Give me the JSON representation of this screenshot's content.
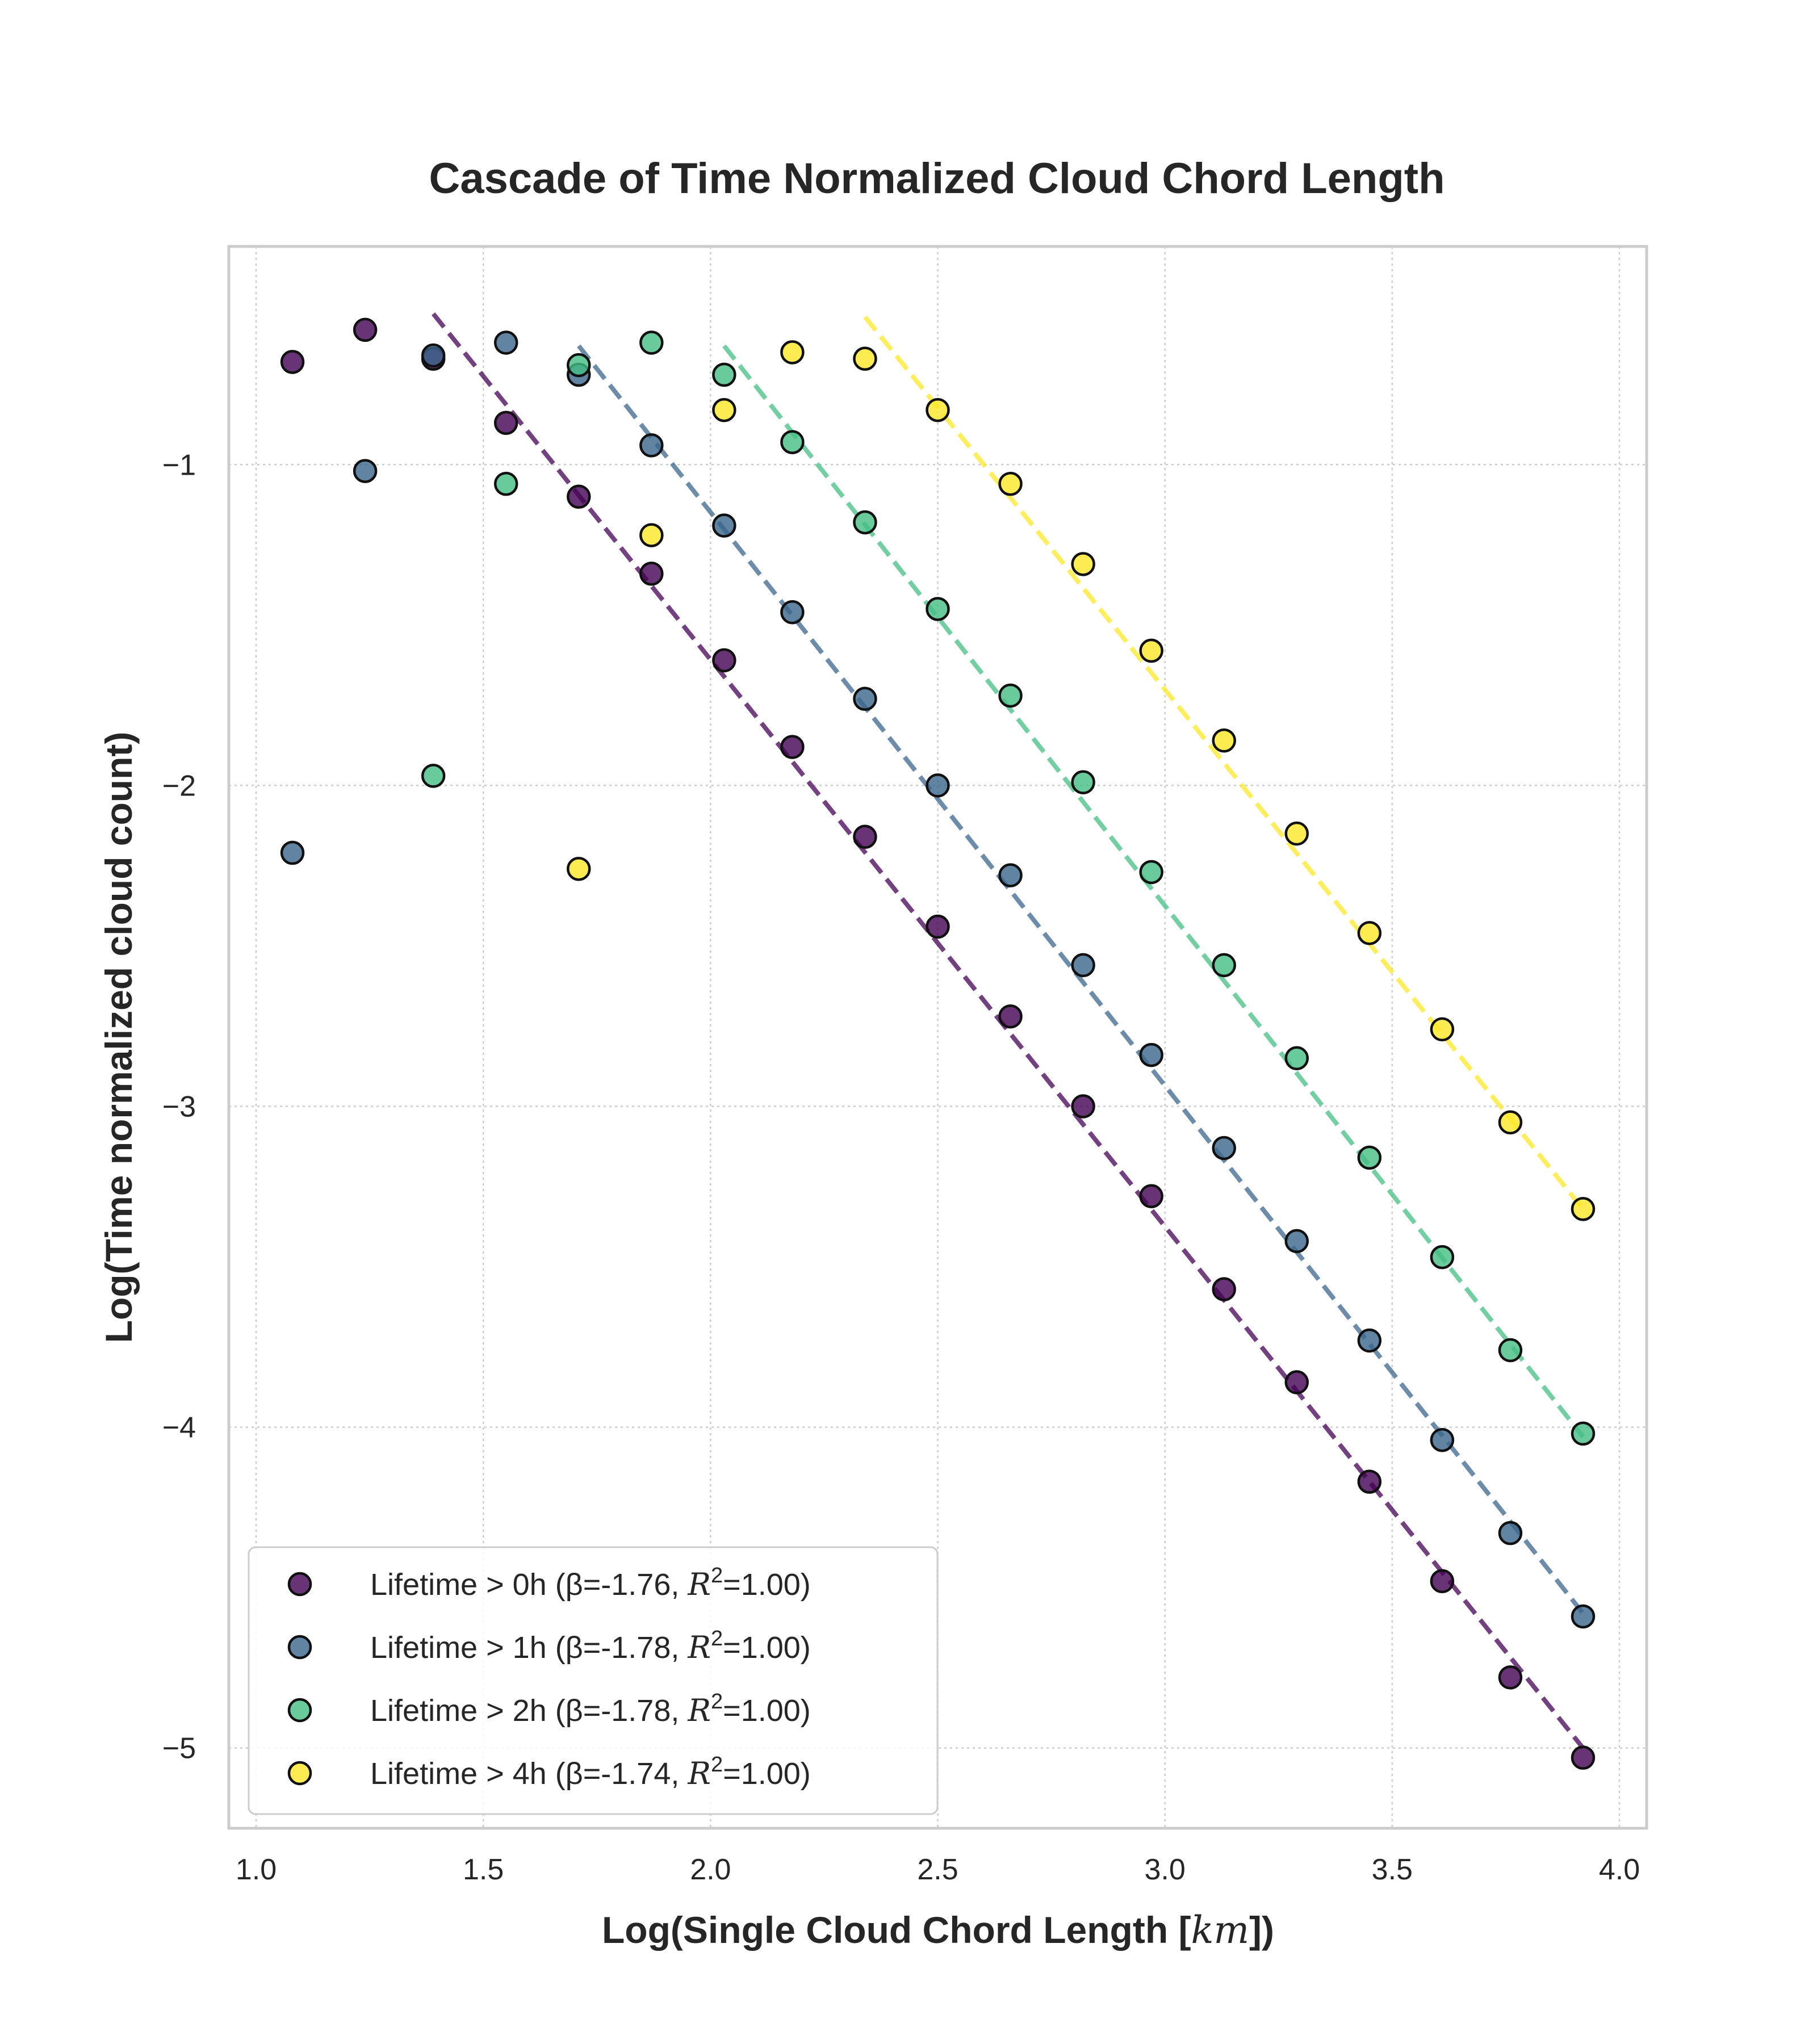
{
  "chart_data": {
    "type": "scatter",
    "title": "Cascade of Time Normalized Cloud Chord Length",
    "xlabel_main": "Log(Single Cloud Chord Length [",
    "xlabel_unit": "km",
    "xlabel_tail": "])",
    "ylabel": "Log(Time normalized cloud count)",
    "xlim": [
      0.94,
      4.06
    ],
    "ylim": [
      -5.25,
      -0.32
    ],
    "xticks": [
      1.0,
      1.5,
      2.0,
      2.5,
      3.0,
      3.5,
      4.0
    ],
    "xtick_labels": [
      "1.0",
      "1.5",
      "2.0",
      "2.5",
      "3.0",
      "3.5",
      "4.0"
    ],
    "yticks": [
      -1,
      -2,
      -3,
      -4,
      -5
    ],
    "ytick_labels": [
      "−1",
      "−2",
      "−3",
      "−4",
      "−5"
    ],
    "grid": true,
    "legend_position": "lower-left",
    "series": [
      {
        "name": "Lifetime > 0h (β=-1.76, R²=1.00)",
        "label_prefix": "Lifetime > 0h (β=-1.76, ",
        "label_suffix": "=1.00)",
        "color": "#440154",
        "x": [
          1.08,
          1.24,
          1.39,
          1.55,
          1.71,
          1.87,
          2.03,
          2.18,
          2.34,
          2.5,
          2.66,
          2.82,
          2.97,
          3.13,
          3.29,
          3.45,
          3.61,
          3.76,
          3.92
        ],
        "y": [
          -0.68,
          -0.58,
          -0.67,
          -0.87,
          -1.1,
          -1.34,
          -1.61,
          -1.88,
          -2.16,
          -2.44,
          -2.72,
          -3.0,
          -3.28,
          -3.57,
          -3.86,
          -4.17,
          -4.48,
          -4.78,
          -5.03
        ],
        "fit": {
          "x": [
            1.39,
            3.92
          ],
          "y": [
            -0.53,
            -5.0
          ]
        }
      },
      {
        "name": "Lifetime > 1h (β=-1.78, R²=1.00)",
        "label_prefix": "Lifetime > 1h (β=-1.78, ",
        "label_suffix": "=1.00)",
        "color": "#3b658c",
        "x": [
          1.08,
          1.24,
          1.39,
          1.55,
          1.71,
          1.87,
          2.03,
          2.18,
          2.34,
          2.5,
          2.66,
          2.82,
          2.97,
          3.13,
          3.29,
          3.45,
          3.61,
          3.76,
          3.92
        ],
        "y": [
          -2.21,
          -1.02,
          -0.66,
          -0.62,
          -0.72,
          -0.94,
          -1.19,
          -1.46,
          -1.73,
          -2.0,
          -2.28,
          -2.56,
          -2.84,
          -3.13,
          -3.42,
          -3.73,
          -4.04,
          -4.33,
          -4.59
        ],
        "fit": {
          "x": [
            1.71,
            3.92
          ],
          "y": [
            -0.63,
            -4.58
          ]
        }
      },
      {
        "name": "Lifetime > 2h (β=-1.78, R²=1.00)",
        "label_prefix": "Lifetime > 2h (β=-1.78, ",
        "label_suffix": "=1.00)",
        "color": "#44be83",
        "x": [
          1.39,
          1.55,
          1.71,
          1.87,
          2.03,
          2.18,
          2.34,
          2.5,
          2.66,
          2.82,
          2.97,
          3.13,
          3.29,
          3.45,
          3.61,
          3.76,
          3.92
        ],
        "y": [
          -1.97,
          -1.06,
          -0.69,
          -0.62,
          -0.72,
          -0.93,
          -1.18,
          -1.45,
          -1.72,
          -1.99,
          -2.27,
          -2.56,
          -2.85,
          -3.16,
          -3.47,
          -3.76,
          -4.02
        ],
        "fit": {
          "x": [
            2.03,
            3.92
          ],
          "y": [
            -0.63,
            -4.03
          ]
        }
      },
      {
        "name": "Lifetime > 4h (β=-1.74, R²=1.00)",
        "label_prefix": "Lifetime > 4h (β=-1.74, ",
        "label_suffix": "=1.00)",
        "color": "#fde725",
        "x": [
          1.71,
          1.87,
          2.03,
          2.18,
          2.34,
          2.5,
          2.66,
          2.82,
          2.97,
          3.13,
          3.29,
          3.45,
          3.61,
          3.76,
          3.92
        ],
        "y": [
          -2.26,
          -1.22,
          -0.83,
          -0.65,
          -0.67,
          -0.83,
          -1.06,
          -1.31,
          -1.58,
          -1.86,
          -2.15,
          -2.46,
          -2.76,
          -3.05,
          -3.32
        ],
        "fit": {
          "x": [
            2.34,
            3.92
          ],
          "y": [
            -0.54,
            -3.32
          ]
        }
      }
    ]
  }
}
